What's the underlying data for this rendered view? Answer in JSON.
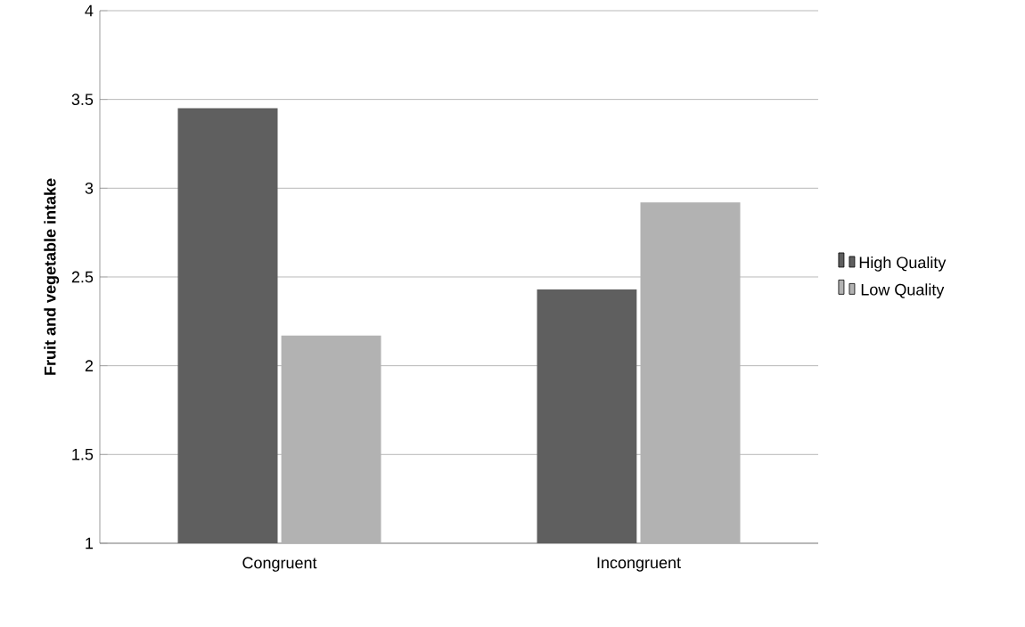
{
  "chart_data": {
    "type": "bar",
    "ylabel": "Fruit and vegetable intake",
    "categories": [
      "Congruent",
      "Incongruent"
    ],
    "series": [
      {
        "name": "High Quality",
        "color": "#5f5f5f",
        "values": [
          3.45,
          2.43
        ]
      },
      {
        "name": "Low Quality",
        "color": "#b2b2b2",
        "values": [
          2.17,
          2.92
        ]
      }
    ],
    "ylim": [
      1,
      4
    ],
    "yticks": [
      1,
      1.5,
      2,
      2.5,
      3,
      3.5,
      4
    ],
    "grid": "y",
    "legend": "right"
  }
}
